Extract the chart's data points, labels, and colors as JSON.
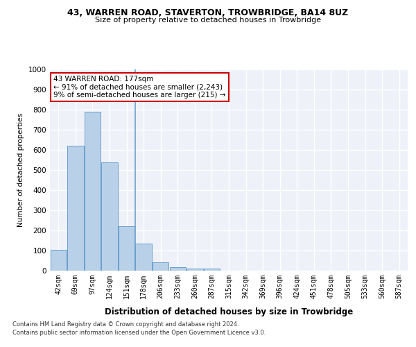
{
  "title": "43, WARREN ROAD, STAVERTON, TROWBRIDGE, BA14 8UZ",
  "subtitle": "Size of property relative to detached houses in Trowbridge",
  "xlabel": "Distribution of detached houses by size in Trowbridge",
  "ylabel": "Number of detached properties",
  "bar_color": "#b8d0e8",
  "bar_edge_color": "#6aa0cc",
  "categories": [
    "42sqm",
    "69sqm",
    "97sqm",
    "124sqm",
    "151sqm",
    "178sqm",
    "206sqm",
    "233sqm",
    "260sqm",
    "287sqm",
    "315sqm",
    "342sqm",
    "369sqm",
    "396sqm",
    "424sqm",
    "451sqm",
    "478sqm",
    "505sqm",
    "533sqm",
    "560sqm",
    "587sqm"
  ],
  "values": [
    103,
    622,
    789,
    537,
    222,
    133,
    42,
    17,
    9,
    12,
    0,
    0,
    0,
    0,
    0,
    0,
    0,
    0,
    0,
    0,
    0
  ],
  "property_size_label": "177sqm",
  "property_name": "43 WARREN ROAD",
  "pct_smaller": 91,
  "n_smaller": 2243,
  "pct_larger": 9,
  "n_larger": 215,
  "ylim": [
    0,
    1000
  ],
  "yticks": [
    0,
    100,
    200,
    300,
    400,
    500,
    600,
    700,
    800,
    900,
    1000
  ],
  "vline_x": 4.5,
  "background_color": "#eef2f8",
  "grid_color": "#ffffff",
  "annotation_box_edge": "#cc0000",
  "footer_line1": "Contains HM Land Registry data © Crown copyright and database right 2024.",
  "footer_line2": "Contains public sector information licensed under the Open Government Licence v3.0."
}
